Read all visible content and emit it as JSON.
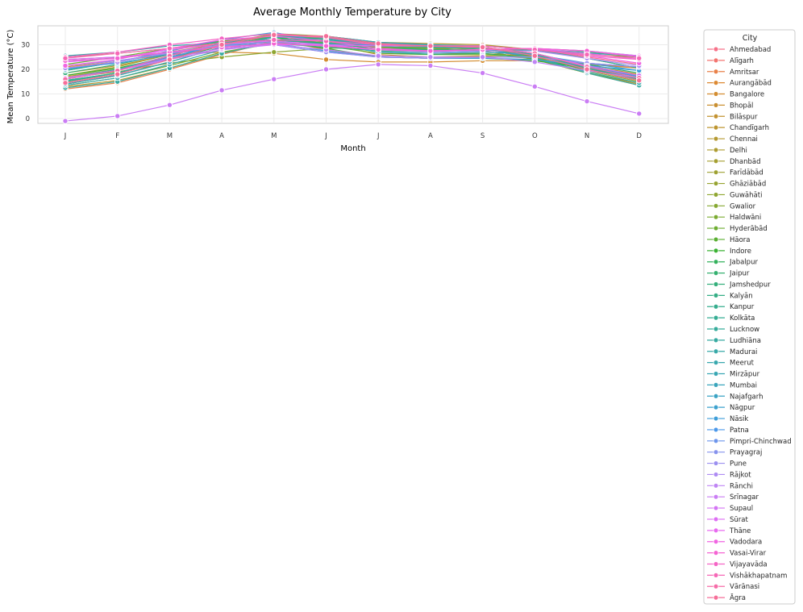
{
  "chart_data": {
    "type": "line",
    "title": "Average Monthly Temperature by City",
    "xlabel": "Month",
    "ylabel": "Mean Temperature (°C)",
    "categories": [
      "J",
      "F",
      "M",
      "A",
      "M",
      "J",
      "J",
      "A",
      "S",
      "O",
      "N",
      "D"
    ],
    "yticks": [
      0,
      10,
      20,
      30
    ],
    "ylim": [
      -2,
      38
    ],
    "grid": true,
    "legend": {
      "title": "City",
      "placement": "outside-right"
    },
    "series": [
      {
        "name": "Ahmedabad",
        "color": "#f77189",
        "values": [
          20.5,
          23,
          27.5,
          31.5,
          33.5,
          31.5,
          28.5,
          27.5,
          28,
          28,
          25,
          22
        ]
      },
      {
        "name": "Alīgarh",
        "color": "#f37570",
        "values": [
          14.5,
          18,
          24,
          30,
          34,
          33,
          30,
          29,
          28.5,
          25.5,
          20,
          15.5
        ]
      },
      {
        "name": "Amritsar",
        "color": "#e98149",
        "values": [
          12,
          14.5,
          20,
          26,
          31.5,
          32.5,
          30.5,
          29.5,
          28.5,
          24,
          18.5,
          13.5
        ]
      },
      {
        "name": "Aurangābād",
        "color": "#dc8932",
        "values": [
          21,
          23,
          27,
          30.5,
          32,
          28,
          25,
          24.5,
          25,
          25,
          22,
          20.5
        ]
      },
      {
        "name": "Bangalore",
        "color": "#d38d31",
        "values": [
          21.5,
          23.5,
          26,
          27,
          26.5,
          24,
          23,
          23,
          23.5,
          23.5,
          22,
          21
        ]
      },
      {
        "name": "Bhopāl",
        "color": "#c98f31",
        "values": [
          17,
          20,
          25,
          30,
          33,
          30.5,
          26,
          25,
          25.5,
          24.5,
          20.5,
          17.5
        ]
      },
      {
        "name": "Bilāspur",
        "color": "#c39230",
        "values": [
          18.5,
          21.5,
          26,
          30.5,
          33.5,
          31,
          27,
          26.5,
          26.5,
          25,
          21.5,
          18
        ]
      },
      {
        "name": "Chandīgarh",
        "color": "#bd9530",
        "values": [
          13,
          15.5,
          20.5,
          26.5,
          31,
          31.5,
          29,
          28,
          27.5,
          24,
          18.5,
          14
        ]
      },
      {
        "name": "Chennai",
        "color": "#b59931",
        "values": [
          25,
          26.5,
          28.5,
          31,
          33,
          32.5,
          31,
          30.5,
          30,
          28,
          26,
          25
        ]
      },
      {
        "name": "Delhi",
        "color": "#ad9c31",
        "values": [
          14,
          17.5,
          23,
          29,
          33,
          33.5,
          31,
          30,
          29,
          25.5,
          20,
          15.5
        ]
      },
      {
        "name": "Dhanbād",
        "color": "#a59f31",
        "values": [
          17.5,
          21,
          26,
          30.5,
          32,
          30.5,
          28.5,
          28,
          28,
          26,
          21.5,
          17.5
        ]
      },
      {
        "name": "Farīdābād",
        "color": "#9ea131",
        "values": [
          14,
          17.5,
          23,
          29,
          33,
          33.5,
          31,
          30,
          29,
          25.5,
          20,
          15.5
        ]
      },
      {
        "name": "Ghāziābād",
        "color": "#97a331",
        "values": [
          14,
          17.5,
          23,
          29,
          33,
          33,
          30.5,
          29.5,
          28.5,
          25,
          19.5,
          15
        ]
      },
      {
        "name": "Guwāhāti",
        "color": "#8fa631",
        "values": [
          16.5,
          19,
          22.5,
          25,
          27,
          28.5,
          29,
          29,
          28,
          25.5,
          21.5,
          17.5
        ]
      },
      {
        "name": "Gwalior",
        "color": "#86a831",
        "values": [
          15,
          18.5,
          24.5,
          30.5,
          34.5,
          33.5,
          30,
          28.5,
          28.5,
          25.5,
          20,
          16
        ]
      },
      {
        "name": "Haldwāni",
        "color": "#7bab31",
        "values": [
          13.5,
          16.5,
          21.5,
          27,
          30.5,
          31,
          29,
          28.5,
          27.5,
          24,
          18.5,
          14.5
        ]
      },
      {
        "name": "Hyderābād",
        "color": "#6ead32",
        "values": [
          22,
          25,
          28.5,
          31.5,
          33,
          29.5,
          26.5,
          26,
          26,
          25,
          22.5,
          21
        ]
      },
      {
        "name": "Hāora",
        "color": "#5aaf32",
        "values": [
          19.5,
          23,
          27,
          30,
          31,
          30.5,
          29.5,
          29.5,
          29.5,
          28,
          24.5,
          20.5
        ]
      },
      {
        "name": "Indore",
        "color": "#3ab233",
        "values": [
          17.5,
          20.5,
          25,
          29.5,
          31.5,
          28.5,
          25,
          24.5,
          24.5,
          23.5,
          20.5,
          17.5
        ]
      },
      {
        "name": "Jabalpur",
        "color": "#33b15c",
        "values": [
          16.5,
          19.5,
          24.5,
          29.5,
          33,
          30.5,
          27,
          26,
          26.5,
          24.5,
          20,
          16.5
        ]
      },
      {
        "name": "Jaipur",
        "color": "#34b06f",
        "values": [
          15.5,
          18.5,
          24,
          29.5,
          33,
          32.5,
          29.5,
          28,
          28,
          25.5,
          21,
          17
        ]
      },
      {
        "name": "Jamshedpur",
        "color": "#34af7b",
        "values": [
          18.5,
          22,
          26.5,
          30.5,
          32,
          30.5,
          28.5,
          28,
          28,
          26,
          22,
          18.5
        ]
      },
      {
        "name": "Kalyān",
        "color": "#35ae85",
        "values": [
          23.5,
          24.5,
          27,
          29,
          30.5,
          29,
          27.5,
          27,
          27.5,
          28,
          27,
          25
        ]
      },
      {
        "name": "Kanpur",
        "color": "#35ad8d",
        "values": [
          15,
          18.5,
          24.5,
          30.5,
          33.5,
          33,
          30,
          29.5,
          29,
          26,
          20.5,
          16
        ]
      },
      {
        "name": "Kolkāta",
        "color": "#36ad94",
        "values": [
          19.5,
          23,
          27,
          30,
          31,
          30.5,
          29.5,
          29.5,
          29.5,
          28,
          24.5,
          20.5
        ]
      },
      {
        "name": "Lucknow",
        "color": "#36ac9b",
        "values": [
          15.5,
          18.5,
          24.5,
          30.5,
          33.5,
          33,
          30,
          29.5,
          29,
          26,
          20.5,
          16.5
        ]
      },
      {
        "name": "Ludhiāna",
        "color": "#37aaa1",
        "values": [
          12.5,
          15,
          20.5,
          26.5,
          31,
          32,
          30,
          29,
          28.5,
          24.5,
          18.5,
          13.5
        ]
      },
      {
        "name": "Madurai",
        "color": "#37a9a8",
        "values": [
          25.5,
          27,
          29.5,
          31,
          32,
          31.5,
          30.5,
          30,
          29.5,
          28,
          26.5,
          25.5
        ]
      },
      {
        "name": "Meerut",
        "color": "#38a8ae",
        "values": [
          13.5,
          16.5,
          22,
          28,
          32,
          32.5,
          30,
          29,
          28.5,
          24.5,
          19,
          14.5
        ]
      },
      {
        "name": "Mirzāpur",
        "color": "#39a7b4",
        "values": [
          16.5,
          20,
          25.5,
          31,
          34,
          33,
          30,
          29.5,
          29,
          26.5,
          21.5,
          17
        ]
      },
      {
        "name": "Mumbai",
        "color": "#3aa5bc",
        "values": [
          24,
          25,
          27,
          29,
          30.5,
          29.5,
          28,
          27.5,
          28,
          28.5,
          27.5,
          25.5
        ]
      },
      {
        "name": "Najafgarh",
        "color": "#3aa3c4",
        "values": [
          14,
          17.5,
          23,
          29,
          33,
          33.5,
          31,
          30,
          29,
          25.5,
          20,
          15.5
        ]
      },
      {
        "name": "Nāgpur",
        "color": "#3ca1ce",
        "values": [
          20,
          23,
          27.5,
          32,
          35,
          31,
          27,
          26.5,
          27,
          26,
          22.5,
          19.5
        ]
      },
      {
        "name": "Nāsik",
        "color": "#3e9ed9",
        "values": [
          20.5,
          22.5,
          26,
          29.5,
          30.5,
          27.5,
          25,
          24.5,
          24.5,
          24,
          21.5,
          19.5
        ]
      },
      {
        "name": "Patna",
        "color": "#4c98ea",
        "values": [
          16,
          19.5,
          25,
          30,
          32,
          31.5,
          29.5,
          29.5,
          29,
          26.5,
          21.5,
          17
        ]
      },
      {
        "name": "Pimpri-Chinchwad",
        "color": "#6d95ec",
        "values": [
          21.5,
          23.5,
          26.5,
          29.5,
          30,
          27,
          25,
          24.5,
          25,
          25,
          22.5,
          21
        ]
      },
      {
        "name": "Prayagraj",
        "color": "#8692ed",
        "values": [
          16,
          19.5,
          25.5,
          31,
          34,
          33,
          30,
          29.5,
          29,
          26.5,
          21,
          16.5
        ]
      },
      {
        "name": "Pune",
        "color": "#9b8ff0",
        "values": [
          21.5,
          23.5,
          26.5,
          29.5,
          30,
          27,
          25,
          24.5,
          25,
          25,
          22.5,
          21
        ]
      },
      {
        "name": "Rājkot",
        "color": "#ae8bf3",
        "values": [
          20.5,
          23,
          27,
          30,
          31,
          30,
          28,
          27,
          27.5,
          27.5,
          24.5,
          21.5
        ]
      },
      {
        "name": "Rānchi",
        "color": "#bf85f4",
        "values": [
          16.5,
          19.5,
          24,
          28,
          30,
          28,
          25.5,
          25,
          25,
          23,
          19.5,
          16.5
        ]
      },
      {
        "name": "Srīnagar",
        "color": "#ca7df4",
        "values": [
          -1,
          1,
          5.5,
          11.5,
          16,
          20,
          22,
          21.5,
          18.5,
          13,
          7,
          2
        ]
      },
      {
        "name": "Supaul",
        "color": "#d475f4",
        "values": [
          16.5,
          19.5,
          24.5,
          28.5,
          30,
          30,
          29.5,
          29.5,
          29,
          26.5,
          21.5,
          17.5
        ]
      },
      {
        "name": "Sūrat",
        "color": "#de6ef4",
        "values": [
          23,
          24.5,
          28,
          30.5,
          31.5,
          30,
          28,
          27.5,
          28,
          28.5,
          26.5,
          24
        ]
      },
      {
        "name": "Thāne",
        "color": "#e86af0",
        "values": [
          24,
          25,
          27,
          29,
          30.5,
          29.5,
          28,
          27.5,
          28,
          28.5,
          27.5,
          25.5
        ]
      },
      {
        "name": "Vadodara",
        "color": "#f165e2",
        "values": [
          21.5,
          24,
          28.5,
          32,
          33.5,
          31.5,
          28.5,
          27.5,
          28,
          28.5,
          25.5,
          22.5
        ]
      },
      {
        "name": "Vasai-Virar",
        "color": "#f563d3",
        "values": [
          23.5,
          24.5,
          27,
          29,
          30.5,
          29.5,
          28,
          27.5,
          28,
          28.5,
          27.5,
          25
        ]
      },
      {
        "name": "Vijayavāda",
        "color": "#f564c5",
        "values": [
          25,
          27,
          30,
          32.5,
          34.5,
          33,
          30,
          29.5,
          29.5,
          28,
          25.5,
          24
        ]
      },
      {
        "name": "Vishākhapatnam",
        "color": "#f668b7",
        "values": [
          24.5,
          26.5,
          28.5,
          30.5,
          32,
          31.5,
          30,
          29.5,
          29.5,
          28,
          26,
          24.5
        ]
      },
      {
        "name": "Vārānasi",
        "color": "#f66ca8",
        "values": [
          16,
          19.5,
          25.5,
          31,
          34,
          33,
          30,
          29.5,
          29,
          26.5,
          21,
          16.5
        ]
      },
      {
        "name": "Āgra",
        "color": "#f66f99",
        "values": [
          14.5,
          18,
          24,
          30,
          34,
          33.5,
          30.5,
          29.5,
          29,
          25.5,
          20,
          15.5
        ]
      }
    ]
  }
}
